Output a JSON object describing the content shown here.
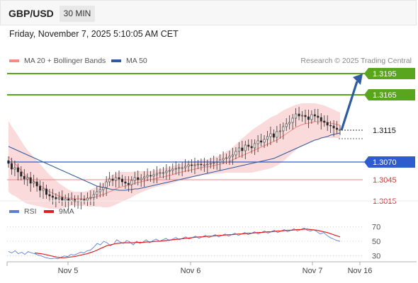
{
  "header": {
    "symbol": "GBP/USD",
    "timeframe": "30 MIN"
  },
  "datetime": "Friday, November 7, 2025 5:10:05 AM CET",
  "legend": {
    "ma20": {
      "label": "MA 20 + Bollinger Bands",
      "color": "#f28b82"
    },
    "ma50": {
      "label": "MA 50",
      "color": "#2e5c9e"
    }
  },
  "research": "Research © 2025 Trading Central",
  "rsi_legend": {
    "rsi": {
      "label": "RSI",
      "color": "#5b7fd4"
    },
    "ma9": {
      "label": "9MA",
      "color": "#e02020"
    }
  },
  "colors": {
    "resistance": "#5aa51e",
    "support": "#e58a8a",
    "pivot": "#2e5ccf",
    "current": "#333333",
    "arrow": "#2e5c9e",
    "band": "#f9d4d4",
    "candle_up": "#555555",
    "candle_down": "#222222"
  },
  "chart_data": [
    {
      "type": "candlestick",
      "title": "GBP/USD",
      "x_ticks": [
        "Nov 5",
        "Nov 6",
        "Nov 7",
        "Nov 16"
      ],
      "ylim": [
        1.2995,
        1.3215
      ],
      "levels": [
        {
          "label": "1.3195",
          "value": 1.3195,
          "kind": "resistance"
        },
        {
          "label": "1.3165",
          "value": 1.3165,
          "kind": "resistance"
        },
        {
          "label": "1.3115",
          "value": 1.3115,
          "kind": "current"
        },
        {
          "label": "1.3070",
          "value": 1.307,
          "kind": "pivot"
        },
        {
          "label": "1.3045",
          "value": 1.3045,
          "kind": "support"
        },
        {
          "label": "1.3015",
          "value": 1.3015,
          "kind": "support"
        }
      ],
      "close": [
        1.3068,
        1.306,
        1.3062,
        1.3056,
        1.305,
        1.3046,
        1.3048,
        1.304,
        1.3042,
        1.3036,
        1.303,
        1.3032,
        1.3024,
        1.3022,
        1.302,
        1.3018,
        1.302,
        1.3016,
        1.3018,
        1.3015,
        1.3017,
        1.3014,
        1.3015,
        1.3017,
        1.3016,
        1.3019,
        1.302,
        1.3024,
        1.3028,
        1.3031,
        1.3034,
        1.3042,
        1.3046,
        1.3044,
        1.3048,
        1.3046,
        1.3042,
        1.304,
        1.3038,
        1.3044,
        1.3048,
        1.3045,
        1.3047,
        1.3049,
        1.3051,
        1.305,
        1.3052,
        1.3054,
        1.3055,
        1.3055,
        1.3057,
        1.3058,
        1.306,
        1.3061,
        1.3062,
        1.3062,
        1.3064,
        1.3066,
        1.3065,
        1.3066,
        1.3067,
        1.3066,
        1.3066,
        1.3067,
        1.3068,
        1.3069,
        1.307,
        1.3073,
        1.3075,
        1.3076,
        1.3078,
        1.308,
        1.3085,
        1.309,
        1.3086,
        1.3094,
        1.3092,
        1.309,
        1.3096,
        1.31,
        1.3098,
        1.3102,
        1.3106,
        1.311,
        1.3105,
        1.3113,
        1.3114,
        1.312,
        1.3124,
        1.3126,
        1.3132,
        1.3138,
        1.3135,
        1.3136,
        1.3134,
        1.313,
        1.3137,
        1.3135,
        1.3133,
        1.3128,
        1.3126,
        1.3122,
        1.3121,
        1.3118,
        1.3116,
        1.3116
      ],
      "ma20": [
        1.3078,
        1.3072,
        1.3068,
        1.3063,
        1.3058,
        1.3053,
        1.3049,
        1.3046,
        1.3043,
        1.304,
        1.3037,
        1.3034,
        1.3031,
        1.3028,
        1.3026,
        1.3024,
        1.3022,
        1.3021,
        1.302,
        1.3019,
        1.3019,
        1.3018,
        1.3018,
        1.3018,
        1.3018,
        1.3018,
        1.3019,
        1.302,
        1.3021,
        1.3023,
        1.3024,
        1.3026,
        1.3028,
        1.303,
        1.3032,
        1.3034,
        1.3035,
        1.3036,
        1.3037,
        1.3038,
        1.304,
        1.3041,
        1.3042,
        1.3043,
        1.3044,
        1.3045,
        1.3046,
        1.3047,
        1.3048,
        1.3049,
        1.305,
        1.3051,
        1.3052,
        1.3054,
        1.3055,
        1.3056,
        1.3057,
        1.3058,
        1.3059,
        1.306,
        1.3061,
        1.3062,
        1.3063,
        1.3063,
        1.3064,
        1.3065,
        1.3066,
        1.3067,
        1.3068,
        1.307,
        1.3071,
        1.3073,
        1.3075,
        1.3077,
        1.3079,
        1.3081,
        1.3083,
        1.3085,
        1.3087,
        1.3089,
        1.3091,
        1.3093,
        1.3095,
        1.3097,
        1.3099,
        1.3101,
        1.3104,
        1.3107,
        1.311,
        1.3113,
        1.3116,
        1.3119,
        1.3121,
        1.3123,
        1.3124,
        1.3125,
        1.3126,
        1.3127,
        1.3127,
        1.3127,
        1.3127,
        1.3126,
        1.3125,
        1.3124,
        1.3123,
        1.3122
      ],
      "bb_width": [
        0.005,
        0.0048,
        0.0046,
        0.0044,
        0.0042,
        0.004,
        0.0038,
        0.0036,
        0.0034,
        0.0032,
        0.003,
        0.0028,
        0.0026,
        0.0024,
        0.0022,
        0.002,
        0.0018,
        0.0016,
        0.0014,
        0.0012,
        0.001,
        0.001,
        0.001,
        0.001,
        0.001,
        0.0011,
        0.0012,
        0.0013,
        0.0014,
        0.0016,
        0.0018,
        0.002,
        0.0022,
        0.0022,
        0.0022,
        0.0022,
        0.0021,
        0.002,
        0.0019,
        0.0018,
        0.0017,
        0.0016,
        0.0015,
        0.0014,
        0.0013,
        0.0013,
        0.0012,
        0.0012,
        0.0012,
        0.0012,
        0.0012,
        0.0012,
        0.0012,
        0.0012,
        0.0012,
        0.0012,
        0.0012,
        0.0012,
        0.0011,
        0.0011,
        0.0011,
        0.0011,
        0.0011,
        0.0011,
        0.0011,
        0.0012,
        0.0012,
        0.0013,
        0.0014,
        0.0015,
        0.0016,
        0.0018,
        0.002,
        0.0022,
        0.0024,
        0.0026,
        0.0028,
        0.003,
        0.0031,
        0.0032,
        0.0033,
        0.0034,
        0.0035,
        0.0036,
        0.0036,
        0.0036,
        0.0036,
        0.0036,
        0.0035,
        0.0034,
        0.0033,
        0.0032,
        0.0031,
        0.003,
        0.0029,
        0.0028,
        0.0027,
        0.0026,
        0.0025,
        0.0024,
        0.0023,
        0.0022,
        0.0021,
        0.002,
        0.0019,
        0.0018
      ],
      "ma50": [
        1.3092,
        1.309,
        1.3088,
        1.3086,
        1.3084,
        1.3082,
        1.308,
        1.3078,
        1.3076,
        1.3074,
        1.3072,
        1.307,
        1.3068,
        1.3066,
        1.3064,
        1.3062,
        1.306,
        1.3058,
        1.3056,
        1.3054,
        1.3052,
        1.305,
        1.3048,
        1.3046,
        1.3044,
        1.3042,
        1.304,
        1.3038,
        1.3036,
        1.3035,
        1.3034,
        1.3033,
        1.3032,
        1.3031,
        1.3031,
        1.303,
        1.303,
        1.303,
        1.3031,
        1.3031,
        1.3032,
        1.3032,
        1.3033,
        1.3034,
        1.3035,
        1.3036,
        1.3037,
        1.3038,
        1.3039,
        1.304,
        1.3041,
        1.3042,
        1.3043,
        1.3044,
        1.3045,
        1.3046,
        1.3047,
        1.3048,
        1.3049,
        1.305,
        1.3051,
        1.3052,
        1.3053,
        1.3054,
        1.3055,
        1.3056,
        1.3057,
        1.3058,
        1.3059,
        1.306,
        1.3061,
        1.3062,
        1.3063,
        1.3064,
        1.3065,
        1.3066,
        1.3067,
        1.3068,
        1.3069,
        1.307,
        1.3071,
        1.3072,
        1.3073,
        1.3074,
        1.3075,
        1.3077,
        1.3079,
        1.3081,
        1.3083,
        1.3085,
        1.3087,
        1.3089,
        1.3091,
        1.3093,
        1.3095,
        1.3097,
        1.3099,
        1.3101,
        1.3102,
        1.3104,
        1.3105,
        1.3106,
        1.3108,
        1.3109,
        1.311,
        1.3111
      ],
      "projection": {
        "from": 1.3115,
        "to": 1.3195
      }
    },
    {
      "type": "line",
      "title": "RSI",
      "ylim": [
        20,
        80
      ],
      "y_ticks": [
        70,
        50,
        30
      ],
      "series": [
        {
          "name": "RSI",
          "values": [
            36,
            34,
            37,
            33,
            35,
            32,
            36,
            34,
            33,
            31,
            30,
            28,
            27,
            26,
            27,
            26,
            28,
            30,
            29,
            32,
            31,
            33,
            35,
            34,
            37,
            38,
            42,
            47,
            45,
            50,
            48,
            44,
            46,
            52,
            49,
            47,
            51,
            49,
            45,
            50,
            47,
            49,
            52,
            48,
            51,
            53,
            50,
            52,
            54,
            51,
            53,
            55,
            52,
            54,
            56,
            53,
            55,
            57,
            54,
            56,
            58,
            55,
            57,
            59,
            56,
            58,
            60,
            57,
            59,
            61,
            58,
            60,
            62,
            59,
            61,
            63,
            60,
            62,
            64,
            61,
            63,
            65,
            62,
            64,
            66,
            63,
            65,
            67,
            64,
            66,
            68,
            65,
            64,
            66,
            63,
            60,
            62,
            58,
            55,
            53,
            51,
            50
          ]
        },
        {
          "name": "9MA",
          "values": [
            null,
            null,
            null,
            null,
            null,
            null,
            null,
            null,
            34,
            33.5,
            33,
            32,
            31,
            30,
            29,
            28,
            27.5,
            27.5,
            28,
            28.5,
            29,
            30,
            31,
            32,
            33,
            34.5,
            36,
            38,
            40,
            42,
            44,
            45,
            46,
            47,
            47.5,
            48,
            48,
            48,
            48,
            48.5,
            48.5,
            48.5,
            49,
            49,
            49.5,
            50,
            50,
            50.5,
            51,
            51.5,
            52,
            52.5,
            53,
            53.5,
            54,
            54.5,
            55,
            55.5,
            56,
            56,
            56.5,
            57,
            57,
            57.5,
            58,
            58,
            58.5,
            59,
            59,
            59.5,
            60,
            60,
            60.5,
            61,
            61,
            61.5,
            62,
            62,
            62.5,
            63,
            63,
            63.5,
            64,
            64,
            64.5,
            65,
            65,
            65.5,
            66,
            66,
            66.5,
            66.5,
            66,
            65.5,
            65,
            64,
            63,
            62,
            60.5,
            59,
            57.5,
            56
          ]
        }
      ]
    }
  ]
}
